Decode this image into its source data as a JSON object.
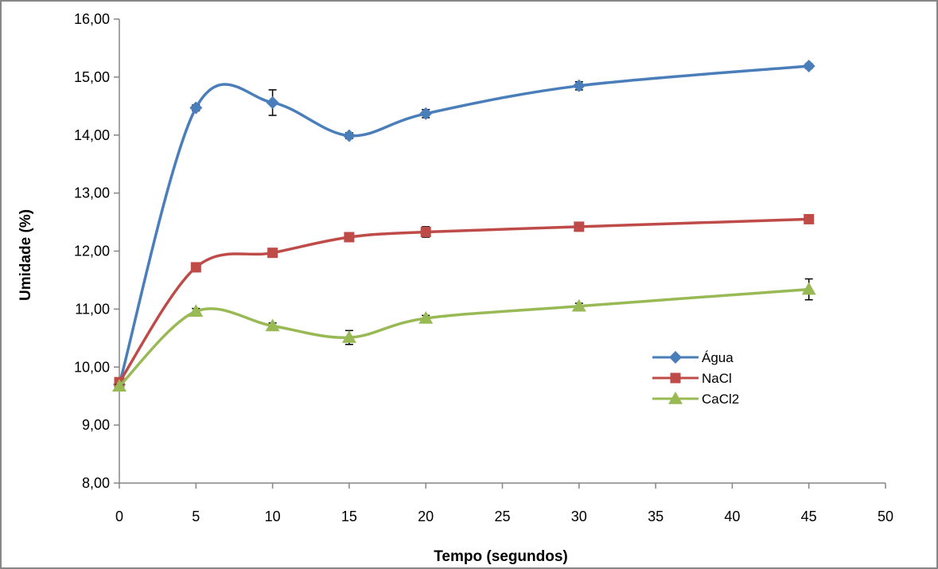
{
  "chart_data": {
    "type": "line",
    "title": "",
    "xlabel": "Tempo (segundos)",
    "ylabel": "Umidade (%)",
    "xlim": [
      0,
      50
    ],
    "ylim": [
      8,
      16
    ],
    "x_ticks": [
      0,
      5,
      10,
      15,
      20,
      25,
      30,
      35,
      40,
      45,
      50
    ],
    "x_tick_labels": [
      "0",
      "5",
      "10",
      "15",
      "20",
      "25",
      "30",
      "35",
      "40",
      "45",
      "50"
    ],
    "y_ticks": [
      8,
      9,
      10,
      11,
      12,
      13,
      14,
      15,
      16
    ],
    "y_tick_labels": [
      "8,00",
      "9,00",
      "10,00",
      "11,00",
      "12,00",
      "13,00",
      "14,00",
      "15,00",
      "16,00"
    ],
    "grid": false,
    "smooth": true,
    "legend_position": "center-right",
    "x": [
      0,
      5,
      10,
      15,
      20,
      30,
      45
    ],
    "series": [
      {
        "name": "Água",
        "color": "#4a7ebb",
        "marker": "diamond",
        "values": [
          9.7,
          14.47,
          14.56,
          13.99,
          14.37,
          14.85,
          15.19
        ],
        "errors": [
          0.03,
          0.05,
          0.22,
          0.05,
          0.07,
          0.07,
          0.04
        ]
      },
      {
        "name": "NaCl",
        "color": "#be4b48",
        "marker": "square",
        "values": [
          9.74,
          11.72,
          11.97,
          12.24,
          12.33,
          12.42,
          12.55
        ],
        "errors": [
          0.03,
          0.05,
          0.05,
          0.04,
          0.09,
          0.05,
          0.04
        ]
      },
      {
        "name": "CaCl2",
        "color": "#98b954",
        "marker": "triangle",
        "values": [
          9.67,
          10.96,
          10.71,
          10.51,
          10.84,
          11.05,
          11.34
        ],
        "errors": [
          0.03,
          0.05,
          0.05,
          0.12,
          0.05,
          0.05,
          0.18
        ]
      }
    ]
  }
}
